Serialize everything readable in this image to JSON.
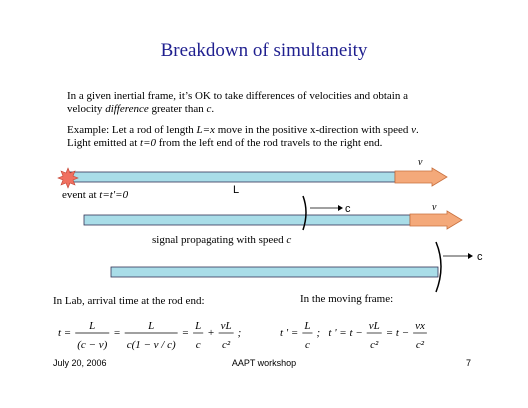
{
  "title": "Breakdown of simultaneity",
  "intro": [
    [
      {
        "text": "In a given inertial frame, it’s OK to take differences of velocities and obtain a"
      }
    ],
    [
      {
        "text": "velocity "
      },
      {
        "text": "difference",
        "italic": true
      },
      {
        "text": " greater than "
      },
      {
        "text": "c",
        "italic": true
      },
      {
        "text": "."
      }
    ]
  ],
  "example": [
    [
      {
        "text": "Example:  Let a rod of length "
      },
      {
        "text": "L=x",
        "italic": true
      },
      {
        "text": " move in the positive x-direction with speed "
      },
      {
        "text": "v",
        "italic": true
      },
      {
        "text": "."
      }
    ],
    [
      {
        "text": "Light emitted at "
      },
      {
        "text": "t=0",
        "italic": true
      },
      {
        "text": " from the left end of the rod travels to the right end."
      }
    ]
  ],
  "diagram": {
    "rod1_speed": "v",
    "rod_length": "L",
    "event": [
      {
        "text": "event at "
      },
      {
        "text": "t=t'=0",
        "italic": true
      }
    ],
    "signal1": "c",
    "rod2_speed": "v",
    "signal_caption": [
      {
        "text": "signal propagating with speed "
      },
      {
        "text": "c",
        "italic": true
      }
    ],
    "signal2": "c"
  },
  "lab": {
    "heading": "In Lab, arrival time at the rod end:",
    "equation": [
      "t =",
      {
        "num": "L",
        "den": "(c − v)"
      },
      "=",
      {
        "num": "L",
        "den": "c(1 − v / c)"
      },
      "=",
      {
        "num": "L",
        "den": "c"
      },
      "+",
      {
        "num": "vL",
        "den": "c²"
      },
      ";"
    ]
  },
  "moving": {
    "heading": "In the moving frame:",
    "equation": [
      "t ' =",
      {
        "num": "L",
        "den": "c"
      },
      ";   t ' = t −",
      {
        "num": "vL",
        "den": "c²"
      },
      "= t −",
      {
        "num": "vx",
        "den": "c²"
      }
    ]
  },
  "footer": {
    "date": "July 20, 2006",
    "event": "AAPT workshop",
    "page": "7"
  }
}
